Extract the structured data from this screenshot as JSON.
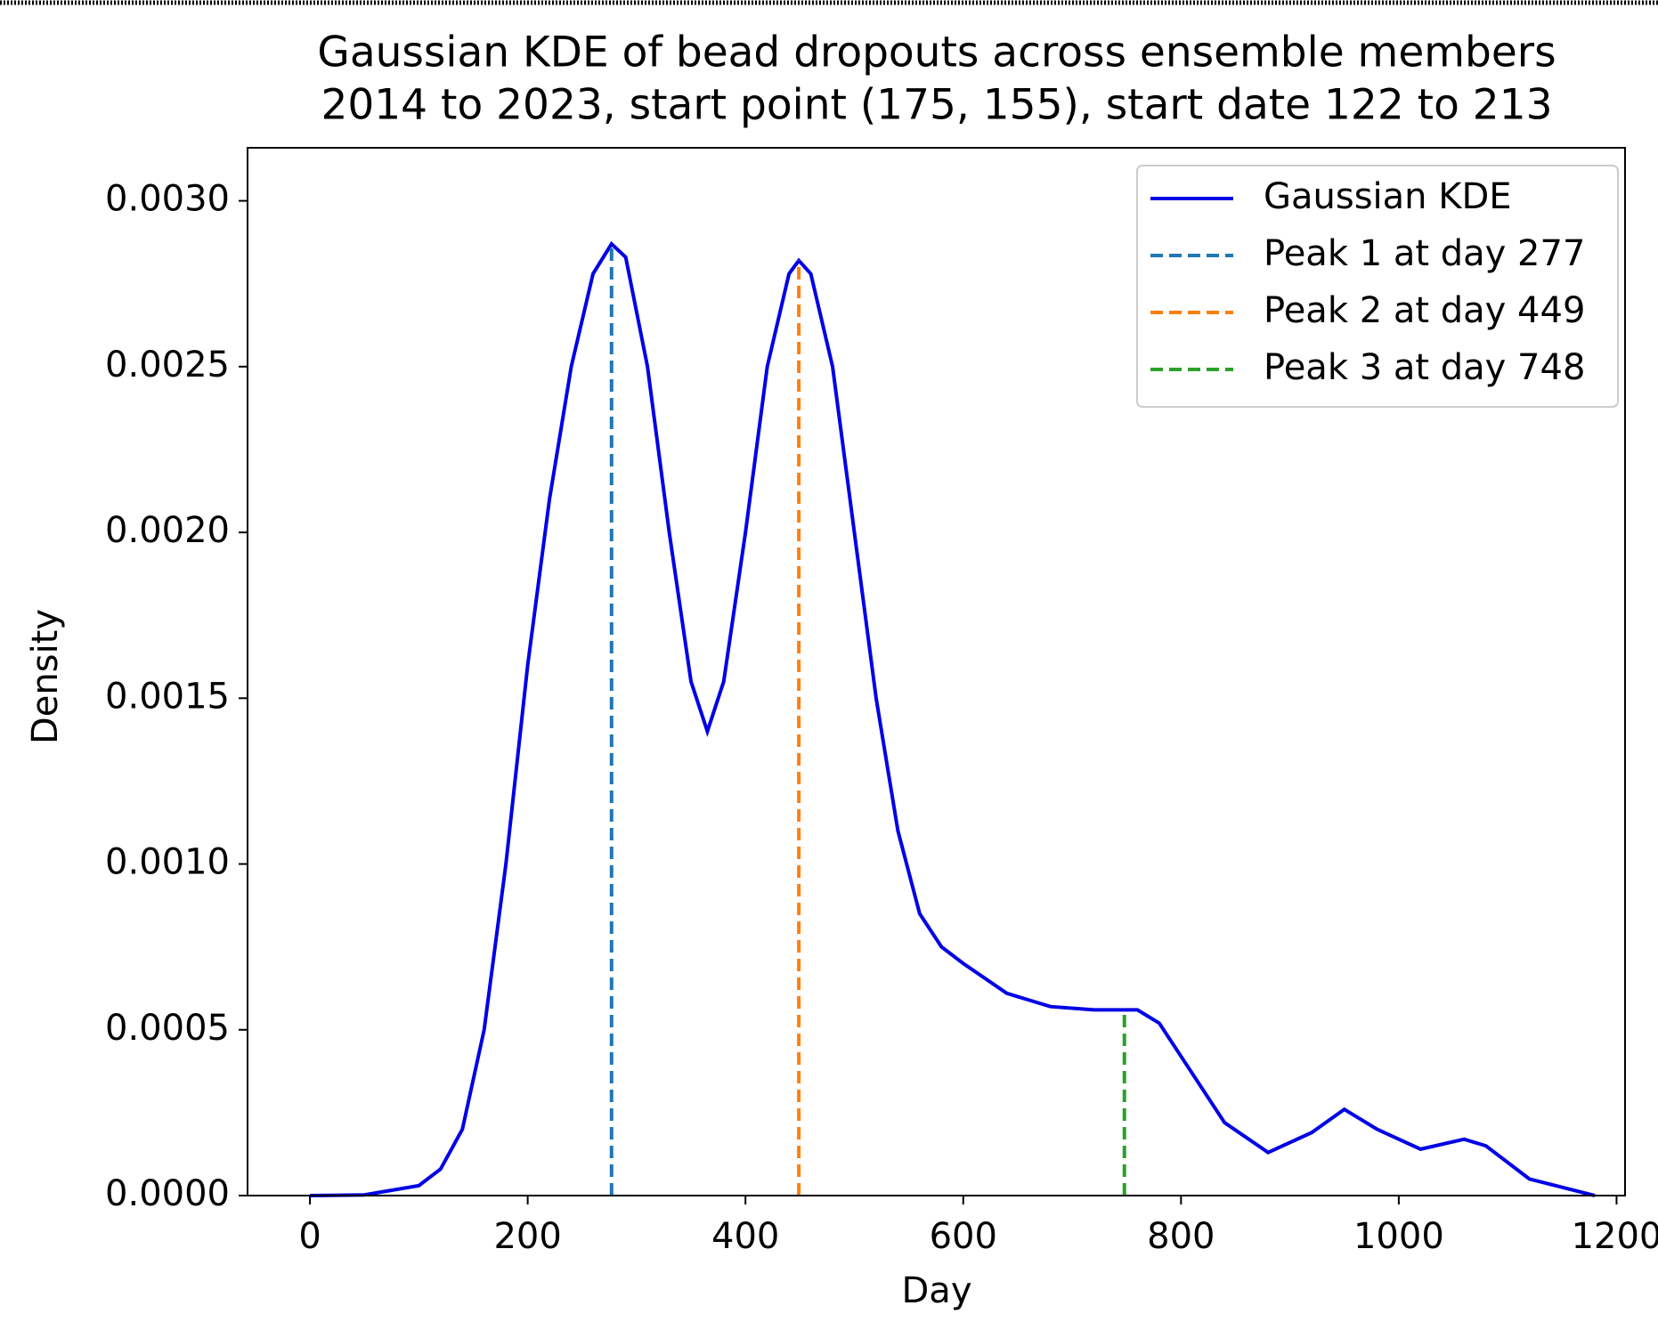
{
  "chart_data": {
    "type": "line",
    "title": "Gaussian KDE of bead dropouts across ensemble members",
    "subtitle": "2014 to 2023, start point (175, 155), start date 122 to 213",
    "xlabel": "Day",
    "ylabel": "Density",
    "xlim": [
      -57.3,
      1207.8
    ],
    "ylim": [
      0,
      0.00316
    ],
    "xticks": [
      0,
      200,
      400,
      600,
      800,
      1000,
      1200
    ],
    "yticks": [
      {
        "value": 0,
        "label": "0.0000"
      },
      {
        "value": 0.0005,
        "label": "0.0005"
      },
      {
        "value": 0.001,
        "label": "0.0010"
      },
      {
        "value": 0.0015,
        "label": "0.0015"
      },
      {
        "value": 0.002,
        "label": "0.0020"
      },
      {
        "value": 0.0025,
        "label": "0.0025"
      },
      {
        "value": 0.003,
        "label": "0.0030"
      }
    ],
    "legend": "upper right",
    "series": [
      {
        "name": "Gaussian KDE",
        "color": "#0000e6",
        "x": [
          0,
          50,
          100,
          120,
          140,
          160,
          180,
          200,
          220,
          240,
          260,
          277,
          290,
          310,
          330,
          350,
          365,
          380,
          400,
          420,
          440,
          449,
          460,
          480,
          500,
          520,
          540,
          560,
          580,
          600,
          640,
          680,
          720,
          760,
          780,
          800,
          840,
          880,
          920,
          950,
          980,
          1020,
          1060,
          1080,
          1120,
          1180
        ],
        "values": [
          0,
          2e-06,
          3e-05,
          8e-05,
          0.0002,
          0.0005,
          0.001,
          0.0016,
          0.0021,
          0.0025,
          0.00278,
          0.00287,
          0.00283,
          0.0025,
          0.002,
          0.00155,
          0.0014,
          0.00155,
          0.002,
          0.0025,
          0.00278,
          0.00282,
          0.00278,
          0.0025,
          0.002,
          0.0015,
          0.0011,
          0.00085,
          0.00075,
          0.0007,
          0.00061,
          0.00057,
          0.00056,
          0.00056,
          0.00052,
          0.00042,
          0.00022,
          0.00013,
          0.00019,
          0.00026,
          0.0002,
          0.00014,
          0.00017,
          0.00015,
          5e-05,
          0
        ]
      }
    ],
    "vlines": [
      {
        "name": "Peak 1 at day 277",
        "color": "#1f77b4",
        "x": 277,
        "ymax": 0.00287
      },
      {
        "name": "Peak 2 at day 449",
        "color": "#ff7f0e",
        "x": 449,
        "ymax": 0.00282
      },
      {
        "name": "Peak 3 at day 748",
        "color": "#2ca02c",
        "x": 748,
        "ymax": 0.00056
      }
    ]
  }
}
